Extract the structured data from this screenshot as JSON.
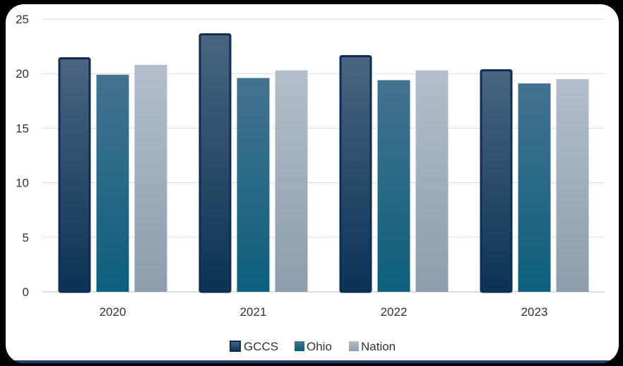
{
  "chart_data": {
    "type": "bar",
    "title": "",
    "xlabel": "",
    "ylabel": "",
    "categories": [
      "2020",
      "2021",
      "2022",
      "2023"
    ],
    "series": [
      {
        "name": "GCCS",
        "values": [
          21.5,
          23.7,
          21.7,
          20.4
        ]
      },
      {
        "name": "Ohio",
        "values": [
          19.9,
          19.6,
          19.4,
          19.1
        ]
      },
      {
        "name": "Nation",
        "values": [
          20.8,
          20.3,
          20.3,
          19.5
        ]
      }
    ],
    "ylim": [
      0,
      25
    ],
    "yticks": [
      "0",
      "5",
      "10",
      "15",
      "20",
      "25"
    ],
    "grid": "horizontal",
    "legend_position": "bottom",
    "colors": {
      "GCCS": {
        "top": "#4a6581",
        "bottom": "#0b3354",
        "stroke": "#0e2d52"
      },
      "Ohio": {
        "top": "#44738f",
        "bottom": "#0d5f7e"
      },
      "Nation": {
        "top": "#b3bfca",
        "bottom": "#8d9dad"
      }
    }
  }
}
